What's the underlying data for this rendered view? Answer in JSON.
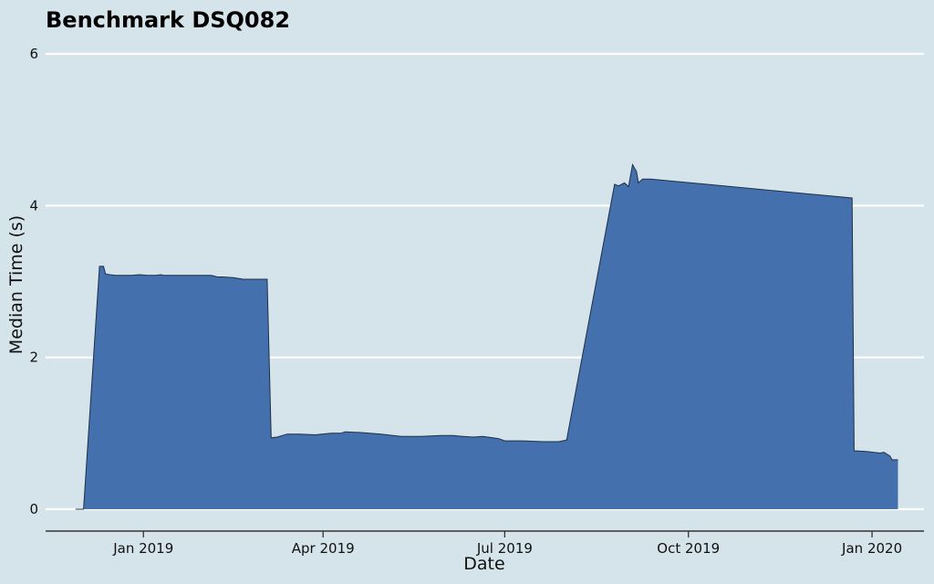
{
  "chart_data": {
    "type": "area",
    "title": "Benchmark DSQ082",
    "xlabel": "Date",
    "ylabel": "Median Time (s)",
    "ylim": [
      0,
      6
    ],
    "xlim": [
      "2018-11-13",
      "2020-01-27"
    ],
    "yticks": [
      0,
      2,
      4,
      6
    ],
    "xticks": [
      {
        "date": "2019-01-01",
        "label": "Jan 2019"
      },
      {
        "date": "2019-04-01",
        "label": "Apr 2019"
      },
      {
        "date": "2019-07-01",
        "label": "Jul 2019"
      },
      {
        "date": "2019-10-01",
        "label": "Oct 2019"
      },
      {
        "date": "2020-01-01",
        "label": "Jan 2020"
      }
    ],
    "grid": "horizontal",
    "legend": "none",
    "fill_color": "#4470ad",
    "line_color": "#1f2f45",
    "series": [
      {
        "x": [
          "2018-11-28",
          "2018-12-02",
          "2018-12-10",
          "2018-12-12",
          "2018-12-13",
          "2018-12-15",
          "2018-12-18",
          "2018-12-22",
          "2018-12-26",
          "2018-12-30",
          "2019-01-03",
          "2019-01-07",
          "2019-01-10",
          "2019-01-11",
          "2019-01-15",
          "2019-01-20",
          "2019-01-25",
          "2019-01-30",
          "2019-02-04",
          "2019-02-07",
          "2019-02-10",
          "2019-02-15",
          "2019-02-20",
          "2019-02-25",
          "2019-03-04",
          "2019-03-06",
          "2019-03-09",
          "2019-03-14",
          "2019-03-20",
          "2019-03-28",
          "2019-04-05",
          "2019-04-10",
          "2019-04-12",
          "2019-04-20",
          "2019-04-30",
          "2019-05-10",
          "2019-05-20",
          "2019-05-30",
          "2019-06-05",
          "2019-06-10",
          "2019-06-15",
          "2019-06-20",
          "2019-06-25",
          "2019-06-28",
          "2019-07-01",
          "2019-07-10",
          "2019-07-20",
          "2019-07-28",
          "2019-08-01",
          "2019-08-25",
          "2019-08-27",
          "2019-08-30",
          "2019-09-01",
          "2019-09-03",
          "2019-09-05",
          "2019-09-06",
          "2019-09-08",
          "2019-09-12",
          "2019-12-22",
          "2019-12-23",
          "2019-12-29",
          "2020-01-05",
          "2020-01-07",
          "2020-01-10",
          "2020-01-11",
          "2020-01-14"
        ],
        "y": [
          0,
          0,
          3.2,
          3.2,
          3.1,
          3.09,
          3.08,
          3.08,
          3.08,
          3.09,
          3.08,
          3.08,
          3.09,
          3.08,
          3.08,
          3.08,
          3.08,
          3.08,
          3.08,
          3.06,
          3.06,
          3.05,
          3.03,
          3.03,
          3.03,
          0.94,
          0.95,
          0.99,
          0.99,
          0.98,
          1.0,
          1.0,
          1.02,
          1.01,
          0.99,
          0.96,
          0.96,
          0.97,
          0.97,
          0.96,
          0.95,
          0.96,
          0.94,
          0.93,
          0.9,
          0.9,
          0.89,
          0.89,
          0.91,
          4.28,
          4.26,
          4.3,
          4.25,
          4.54,
          4.45,
          4.3,
          4.35,
          4.35,
          4.1,
          0.77,
          0.76,
          0.74,
          0.75,
          0.7,
          0.65,
          0.65
        ]
      }
    ]
  }
}
